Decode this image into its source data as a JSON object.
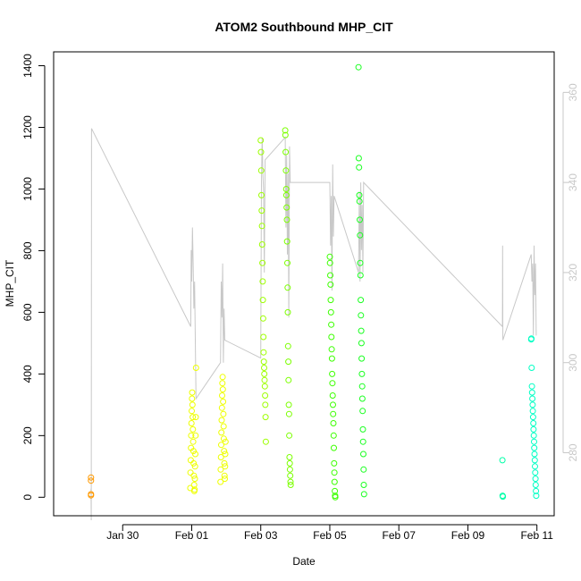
{
  "chart_data": {
    "type": "scatter",
    "title": "ATOM2 Southbound MHP_CIT",
    "xlabel": "Date",
    "ylabel": "MHP_CIT",
    "x_tick_labels": [
      "Jan 30",
      "Feb 01",
      "Feb 03",
      "Feb 05",
      "Feb 07",
      "Feb 09",
      "Feb 11"
    ],
    "y_ticks": [
      0,
      200,
      400,
      600,
      800,
      1000,
      1200,
      1400
    ],
    "y_right_ticks": [
      280,
      300,
      320,
      340,
      360
    ],
    "colors": {
      "axis": "#000000",
      "right_axis": "#c8c8c8",
      "altitude_line": "#c8c8c8"
    },
    "series": [
      {
        "color": "#ff9900",
        "x": [
          "2024-01-29T02:00",
          "2024-01-29T02:00",
          "2024-01-29T02:00",
          "2024-01-29T02:00"
        ],
        "y": [
          10,
          6,
          54,
          64
        ]
      },
      {
        "color": "#eeff00",
        "x": [
          "2024-01-31T23:00",
          "2024-01-31T23:10",
          "2024-01-31T23:20",
          "2024-01-31T23:30",
          "2024-01-31T23:40",
          "2024-01-31T23:50",
          "2024-02-01T00:00",
          "2024-02-01T00:10",
          "2024-02-01T00:20",
          "2024-02-01T00:30",
          "2024-02-01T00:40",
          "2024-02-01T00:50",
          "2024-02-01T01:00",
          "2024-02-01T01:10",
          "2024-02-01T01:20",
          "2024-02-01T01:30",
          "2024-02-01T01:40",
          "2024-02-01T01:50",
          "2024-02-01T02:00",
          "2024-02-01T02:10",
          "2024-02-01T02:20",
          "2024-02-01T02:30",
          "2024-02-01T02:40",
          "2024-02-01T02:50",
          "2024-02-01T03:00"
        ],
        "y": [
          30,
          80,
          120,
          160,
          200,
          240,
          280,
          320,
          340,
          300,
          260,
          220,
          180,
          150,
          110,
          70,
          40,
          20,
          25,
          60,
          100,
          140,
          200,
          260,
          420
        ]
      },
      {
        "color": "#eeff00",
        "x": [
          "2024-02-01T20:00",
          "2024-02-01T20:10",
          "2024-02-01T20:20",
          "2024-02-01T20:30",
          "2024-02-01T20:40",
          "2024-02-01T20:50",
          "2024-02-01T21:00",
          "2024-02-01T21:10",
          "2024-02-01T21:20",
          "2024-02-01T21:30",
          "2024-02-01T21:40",
          "2024-02-01T21:50",
          "2024-02-01T22:00",
          "2024-02-01T22:10",
          "2024-02-01T22:20",
          "2024-02-01T22:30",
          "2024-02-01T22:40",
          "2024-02-01T22:50",
          "2024-02-01T23:00",
          "2024-02-01T23:10",
          "2024-02-01T23:20",
          "2024-02-01T23:30"
        ],
        "y": [
          50,
          90,
          130,
          170,
          210,
          250,
          290,
          330,
          370,
          390,
          350,
          310,
          270,
          230,
          190,
          150,
          110,
          70,
          60,
          100,
          140,
          180
        ]
      },
      {
        "color": "#9dff00",
        "x": [
          "2024-02-03T00:00",
          "2024-02-03T00:10",
          "2024-02-03T00:20",
          "2024-02-03T00:30",
          "2024-02-03T00:40",
          "2024-02-03T00:50",
          "2024-02-03T01:00",
          "2024-02-03T01:10",
          "2024-02-03T01:20",
          "2024-02-03T01:30",
          "2024-02-03T01:40",
          "2024-02-03T01:50",
          "2024-02-03T02:00",
          "2024-02-03T02:10",
          "2024-02-03T02:20",
          "2024-02-03T02:30",
          "2024-02-03T02:40",
          "2024-02-03T02:50",
          "2024-02-03T03:00",
          "2024-02-03T03:10",
          "2024-02-03T03:20",
          "2024-02-03T03:30"
        ],
        "y": [
          1158,
          1120,
          1060,
          980,
          930,
          880,
          820,
          760,
          700,
          640,
          580,
          520,
          470,
          440,
          420,
          400,
          380,
          360,
          330,
          300,
          260,
          180
        ]
      },
      {
        "color": "#7cff00",
        "x": [
          "2024-02-03T17:00",
          "2024-02-03T17:10",
          "2024-02-03T17:20",
          "2024-02-03T17:30",
          "2024-02-03T17:40",
          "2024-02-03T17:50",
          "2024-02-03T18:00",
          "2024-02-03T18:10",
          "2024-02-03T18:20",
          "2024-02-03T18:30",
          "2024-02-03T18:40",
          "2024-02-03T18:50",
          "2024-02-03T19:00",
          "2024-02-03T19:10",
          "2024-02-03T19:20",
          "2024-02-03T19:30",
          "2024-02-03T19:40",
          "2024-02-03T19:50",
          "2024-02-03T20:00",
          "2024-02-03T20:10",
          "2024-02-03T20:20",
          "2024-02-03T20:30",
          "2024-02-03T20:40",
          "2024-02-03T20:50"
        ],
        "y": [
          1190,
          1175,
          1120,
          1060,
          1000,
          980,
          940,
          900,
          830,
          760,
          680,
          600,
          490,
          440,
          380,
          300,
          270,
          200,
          130,
          110,
          90,
          70,
          50,
          40
        ]
      },
      {
        "color": "#3cff00",
        "x": [
          "2024-02-05T00:00",
          "2024-02-05T00:10",
          "2024-02-05T00:20",
          "2024-02-05T00:30",
          "2024-02-05T00:40",
          "2024-02-05T00:50",
          "2024-02-05T01:00",
          "2024-02-05T01:10",
          "2024-02-05T01:20",
          "2024-02-05T01:30",
          "2024-02-05T01:40",
          "2024-02-05T01:50",
          "2024-02-05T02:00",
          "2024-02-05T02:10",
          "2024-02-05T02:20",
          "2024-02-05T02:30",
          "2024-02-05T02:40",
          "2024-02-05T02:50",
          "2024-02-05T03:00",
          "2024-02-05T03:10",
          "2024-02-05T03:20",
          "2024-02-05T03:30",
          "2024-02-05T03:40",
          "2024-02-05T03:50"
        ],
        "y": [
          780,
          760,
          720,
          690,
          640,
          600,
          560,
          520,
          480,
          450,
          400,
          370,
          330,
          300,
          270,
          240,
          200,
          160,
          110,
          80,
          50,
          20,
          5,
          0
        ]
      },
      {
        "color": "#1aff21",
        "x": [
          "2024-02-05T20:00",
          "2024-02-05T20:10",
          "2024-02-05T20:20",
          "2024-02-05T20:30",
          "2024-02-05T20:40",
          "2024-02-05T20:50",
          "2024-02-05T21:00",
          "2024-02-05T21:10",
          "2024-02-05T21:20",
          "2024-02-05T21:30",
          "2024-02-05T21:40",
          "2024-02-05T21:50",
          "2024-02-05T22:00",
          "2024-02-05T22:10",
          "2024-02-05T22:20",
          "2024-02-05T22:30",
          "2024-02-05T22:40",
          "2024-02-05T22:50",
          "2024-02-05T23:00",
          "2024-02-05T23:10",
          "2024-02-05T23:20",
          "2024-02-05T23:30",
          "2024-02-05T23:40",
          "2024-02-05T23:50"
        ],
        "y": [
          1395,
          1100,
          1070,
          980,
          960,
          900,
          850,
          760,
          720,
          640,
          590,
          540,
          500,
          450,
          400,
          360,
          320,
          280,
          220,
          180,
          140,
          90,
          40,
          10
        ]
      },
      {
        "color": "#00ffa8",
        "x": [
          "2024-02-10T00:00",
          "2024-02-10T00:10",
          "2024-02-10T00:20"
        ],
        "y": [
          120,
          5,
          2
        ]
      },
      {
        "color": "#00ffc4",
        "x": [
          "2024-02-10T20:00",
          "2024-02-10T20:10",
          "2024-02-10T20:20",
          "2024-02-10T20:30",
          "2024-02-10T20:40",
          "2024-02-10T20:50",
          "2024-02-10T21:00",
          "2024-02-10T21:10",
          "2024-02-10T21:20",
          "2024-02-10T21:30",
          "2024-02-10T21:40",
          "2024-02-10T21:50",
          "2024-02-10T22:00",
          "2024-02-10T22:10",
          "2024-02-10T22:20",
          "2024-02-10T22:30",
          "2024-02-10T22:40",
          "2024-02-10T22:50",
          "2024-02-10T23:00",
          "2024-02-10T23:10",
          "2024-02-10T23:20",
          "2024-02-10T23:30"
        ],
        "y": [
          512,
          515,
          420,
          360,
          340,
          320,
          300,
          280,
          260,
          240,
          220,
          200,
          180,
          160,
          140,
          120,
          100,
          80,
          60,
          40,
          20,
          5
        ]
      }
    ],
    "altitude_line": {
      "x": [
        "2024-01-29T02:00",
        "2024-01-29T02:10",
        "2024-01-29T02:20",
        "2024-01-31T23:20",
        "2024-01-31T23:40",
        "2024-02-01T00:00",
        "2024-02-01T00:30",
        "2024-02-01T01:00",
        "2024-02-01T01:30",
        "2024-02-01T02:00",
        "2024-02-01T02:30",
        "2024-02-01T03:00",
        "2024-02-01T20:00",
        "2024-02-01T20:30",
        "2024-02-01T21:00",
        "2024-02-01T21:30",
        "2024-02-01T22:00",
        "2024-02-01T22:30",
        "2024-02-01T23:00",
        "2024-02-03T00:00",
        "2024-02-03T00:30",
        "2024-02-03T01:00",
        "2024-02-03T01:30",
        "2024-02-03T02:00",
        "2024-02-03T02:30",
        "2024-02-03T03:00",
        "2024-02-03T17:00",
        "2024-02-03T17:30",
        "2024-02-03T18:00",
        "2024-02-03T18:30",
        "2024-02-03T19:00",
        "2024-02-03T19:30",
        "2024-02-03T20:00",
        "2024-02-03T20:30",
        "2024-02-05T00:00",
        "2024-02-05T00:30",
        "2024-02-05T01:00",
        "2024-02-05T01:30",
        "2024-02-05T02:00",
        "2024-02-05T02:30",
        "2024-02-05T03:00",
        "2024-02-05T20:00",
        "2024-02-05T20:30",
        "2024-02-05T21:00",
        "2024-02-05T21:30",
        "2024-02-05T22:00",
        "2024-02-05T22:30",
        "2024-02-05T23:00",
        "2024-02-05T23:30",
        "2024-02-10T00:00",
        "2024-02-10T00:10",
        "2024-02-10T00:20",
        "2024-02-10T20:00",
        "2024-02-10T20:30",
        "2024-02-10T21:00",
        "2024-02-10T21:30",
        "2024-02-10T22:00",
        "2024-02-10T22:30",
        "2024-02-10T23:00",
        "2024-02-10T23:30"
      ],
      "y": [
        272,
        265,
        352,
        308,
        325,
        318,
        330,
        322,
        312,
        318,
        305,
        292,
        300,
        318,
        310,
        322,
        300,
        312,
        305,
        301,
        340,
        350,
        342,
        338,
        320,
        345,
        350,
        330,
        346,
        324,
        342,
        310,
        348,
        340,
        340,
        326,
        337,
        316,
        344,
        328,
        337,
        320,
        338,
        318,
        340,
        325,
        335,
        320,
        340,
        308,
        326,
        305,
        324,
        318,
        322,
        306,
        326,
        315,
        322,
        306
      ]
    }
  }
}
